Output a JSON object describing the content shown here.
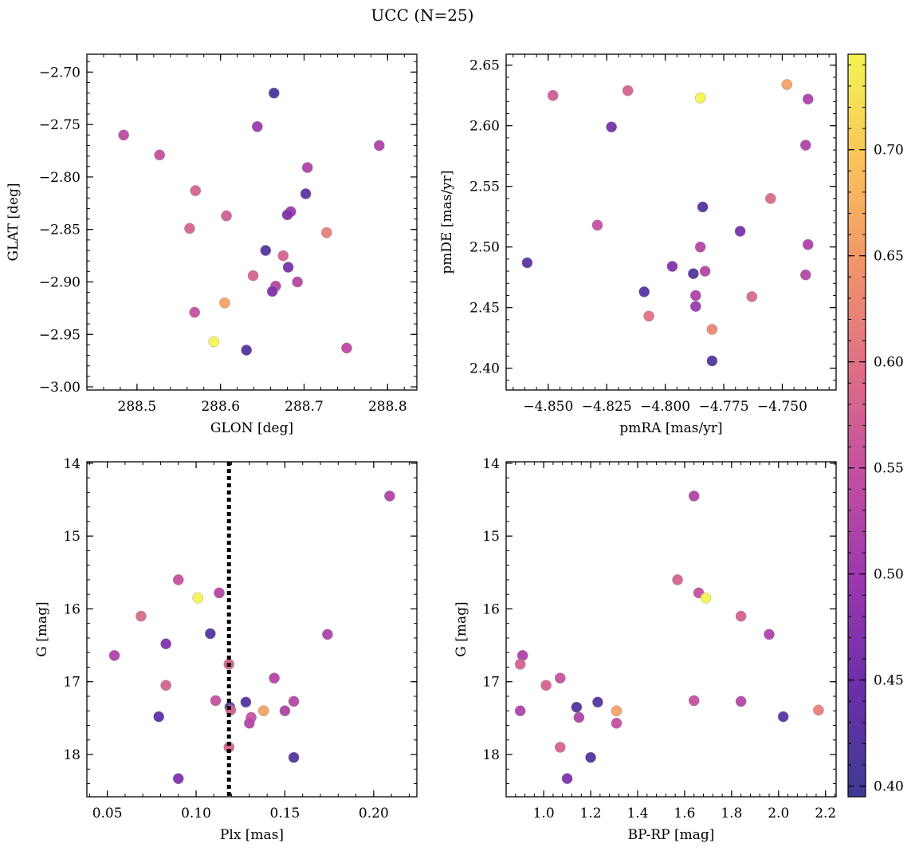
{
  "figure": {
    "suptitle": "UCC (N=25)"
  },
  "colorbar": {
    "vmin": 0.395,
    "vmax": 0.745,
    "ticks": [
      0.4,
      0.45,
      0.5,
      0.55,
      0.6,
      0.65,
      0.7
    ],
    "tick_labels": [
      "0.40",
      "0.45",
      "0.50",
      "0.55",
      "0.60",
      "0.65",
      "0.70"
    ],
    "colormap": "plasma",
    "colormap_stops": [
      "#3d3b94",
      "#6a2fa8",
      "#9a36b0",
      "#c24da3",
      "#de6d86",
      "#f2946a",
      "#fbc25a",
      "#f3f553"
    ]
  },
  "chart_data": [
    {
      "type": "scatter",
      "name": "panel-glon-glat",
      "xlabel": "GLON [deg]",
      "ylabel": "GLAT [deg]",
      "xlim": [
        288.44,
        288.835
      ],
      "ylim": [
        -3.003,
        -2.683
      ],
      "y_inverted": false,
      "xticks": [
        288.5,
        288.6,
        288.7,
        288.8
      ],
      "xtick_labels": [
        "288.5",
        "288.6",
        "288.7",
        "288.8"
      ],
      "yticks": [
        -3.0,
        -2.95,
        -2.9,
        -2.85,
        -2.8,
        -2.75,
        -2.7
      ],
      "ytick_labels": [
        "−3.00",
        "−2.95",
        "−2.90",
        "−2.85",
        "−2.80",
        "−2.75",
        "−2.70"
      ],
      "points": [
        {
          "x": 288.664,
          "y": -2.72,
          "c": 0.41
        },
        {
          "x": 288.644,
          "y": -2.752,
          "c": 0.5
        },
        {
          "x": 288.484,
          "y": -2.76,
          "c": 0.54
        },
        {
          "x": 288.79,
          "y": -2.77,
          "c": 0.52
        },
        {
          "x": 288.527,
          "y": -2.779,
          "c": 0.55
        },
        {
          "x": 288.704,
          "y": -2.791,
          "c": 0.52
        },
        {
          "x": 288.57,
          "y": -2.813,
          "c": 0.58
        },
        {
          "x": 288.702,
          "y": -2.816,
          "c": 0.43
        },
        {
          "x": 288.607,
          "y": -2.837,
          "c": 0.57
        },
        {
          "x": 288.684,
          "y": -2.833,
          "c": 0.5
        },
        {
          "x": 288.68,
          "y": -2.836,
          "c": 0.47
        },
        {
          "x": 288.563,
          "y": -2.849,
          "c": 0.58
        },
        {
          "x": 288.727,
          "y": -2.853,
          "c": 0.62
        },
        {
          "x": 288.654,
          "y": -2.87,
          "c": 0.42
        },
        {
          "x": 288.675,
          "y": -2.875,
          "c": 0.58
        },
        {
          "x": 288.681,
          "y": -2.886,
          "c": 0.46
        },
        {
          "x": 288.639,
          "y": -2.894,
          "c": 0.58
        },
        {
          "x": 288.666,
          "y": -2.904,
          "c": 0.53
        },
        {
          "x": 288.662,
          "y": -2.909,
          "c": 0.47
        },
        {
          "x": 288.692,
          "y": -2.9,
          "c": 0.53
        },
        {
          "x": 288.569,
          "y": -2.929,
          "c": 0.55
        },
        {
          "x": 288.605,
          "y": -2.92,
          "c": 0.66
        },
        {
          "x": 288.592,
          "y": -2.957,
          "c": 0.745
        },
        {
          "x": 288.631,
          "y": -2.965,
          "c": 0.42
        },
        {
          "x": 288.751,
          "y": -2.963,
          "c": 0.54
        }
      ]
    },
    {
      "type": "scatter",
      "name": "panel-pmra-pmde",
      "xlabel": "pmRA [mas/yr]",
      "ylabel": "pmDE [mas/yr]",
      "xlim": [
        -4.868,
        -4.727
      ],
      "ylim": [
        2.382,
        2.659
      ],
      "y_inverted": false,
      "xticks": [
        -4.85,
        -4.825,
        -4.8,
        -4.775,
        -4.75
      ],
      "xtick_labels": [
        "−4.850",
        "−4.825",
        "−4.800",
        "−4.775",
        "−4.750"
      ],
      "yticks": [
        2.4,
        2.45,
        2.5,
        2.55,
        2.6,
        2.65
      ],
      "ytick_labels": [
        "2.40",
        "2.45",
        "2.50",
        "2.55",
        "2.60",
        "2.65"
      ],
      "points": [
        {
          "x": -4.748,
          "y": 2.634,
          "c": 0.66
        },
        {
          "x": -4.816,
          "y": 2.629,
          "c": 0.58
        },
        {
          "x": -4.848,
          "y": 2.625,
          "c": 0.57
        },
        {
          "x": -4.785,
          "y": 2.623,
          "c": 0.745
        },
        {
          "x": -4.739,
          "y": 2.622,
          "c": 0.52
        },
        {
          "x": -4.823,
          "y": 2.599,
          "c": 0.46
        },
        {
          "x": -4.74,
          "y": 2.584,
          "c": 0.52
        },
        {
          "x": -4.755,
          "y": 2.54,
          "c": 0.59
        },
        {
          "x": -4.784,
          "y": 2.533,
          "c": 0.42
        },
        {
          "x": -4.829,
          "y": 2.518,
          "c": 0.55
        },
        {
          "x": -4.768,
          "y": 2.513,
          "c": 0.46
        },
        {
          "x": -4.739,
          "y": 2.502,
          "c": 0.52
        },
        {
          "x": -4.785,
          "y": 2.5,
          "c": 0.53
        },
        {
          "x": -4.859,
          "y": 2.487,
          "c": 0.43
        },
        {
          "x": -4.797,
          "y": 2.484,
          "c": 0.47
        },
        {
          "x": -4.783,
          "y": 2.48,
          "c": 0.53
        },
        {
          "x": -4.788,
          "y": 2.478,
          "c": 0.42
        },
        {
          "x": -4.74,
          "y": 2.477,
          "c": 0.53
        },
        {
          "x": -4.809,
          "y": 2.463,
          "c": 0.42
        },
        {
          "x": -4.787,
          "y": 2.46,
          "c": 0.52
        },
        {
          "x": -4.763,
          "y": 2.459,
          "c": 0.59
        },
        {
          "x": -4.787,
          "y": 2.451,
          "c": 0.5
        },
        {
          "x": -4.807,
          "y": 2.443,
          "c": 0.6
        },
        {
          "x": -4.78,
          "y": 2.432,
          "c": 0.63
        },
        {
          "x": -4.78,
          "y": 2.406,
          "c": 0.42
        }
      ]
    },
    {
      "type": "scatter",
      "name": "panel-plx-g",
      "xlabel": "Plx [mas]",
      "ylabel": "G [mag]",
      "xlim": [
        0.0385,
        0.2243
      ],
      "ylim": [
        18.58,
        13.98
      ],
      "y_inverted": true,
      "xticks": [
        0.05,
        0.1,
        0.15,
        0.2
      ],
      "xtick_labels": [
        "0.05",
        "0.10",
        "0.15",
        "0.20"
      ],
      "yticks": [
        14,
        15,
        16,
        17,
        18
      ],
      "ytick_labels": [
        "14",
        "15",
        "16",
        "17",
        "18"
      ],
      "vline": {
        "x": 0.1185,
        "style": "dotted"
      },
      "points": [
        {
          "x": 0.209,
          "y": 14.45,
          "c": 0.52
        },
        {
          "x": 0.09,
          "y": 15.6,
          "c": 0.55
        },
        {
          "x": 0.113,
          "y": 15.78,
          "c": 0.53
        },
        {
          "x": 0.101,
          "y": 15.85,
          "c": 0.745
        },
        {
          "x": 0.069,
          "y": 16.1,
          "c": 0.59
        },
        {
          "x": 0.108,
          "y": 16.34,
          "c": 0.42
        },
        {
          "x": 0.174,
          "y": 16.35,
          "c": 0.52
        },
        {
          "x": 0.083,
          "y": 16.48,
          "c": 0.47
        },
        {
          "x": 0.054,
          "y": 16.64,
          "c": 0.52
        },
        {
          "x": 0.1185,
          "y": 16.76,
          "c": 0.58
        },
        {
          "x": 0.144,
          "y": 16.95,
          "c": 0.53
        },
        {
          "x": 0.083,
          "y": 17.05,
          "c": 0.58
        },
        {
          "x": 0.111,
          "y": 17.26,
          "c": 0.55
        },
        {
          "x": 0.155,
          "y": 17.27,
          "c": 0.53
        },
        {
          "x": 0.128,
          "y": 17.28,
          "c": 0.42
        },
        {
          "x": 0.119,
          "y": 17.35,
          "c": 0.42
        },
        {
          "x": 0.1195,
          "y": 17.39,
          "c": 0.58
        },
        {
          "x": 0.138,
          "y": 17.4,
          "c": 0.66
        },
        {
          "x": 0.15,
          "y": 17.4,
          "c": 0.52
        },
        {
          "x": 0.079,
          "y": 17.48,
          "c": 0.43
        },
        {
          "x": 0.131,
          "y": 17.49,
          "c": 0.55
        },
        {
          "x": 0.13,
          "y": 17.57,
          "c": 0.53
        },
        {
          "x": 0.1185,
          "y": 17.9,
          "c": 0.58
        },
        {
          "x": 0.155,
          "y": 18.04,
          "c": 0.42
        },
        {
          "x": 0.09,
          "y": 18.33,
          "c": 0.47
        }
      ]
    },
    {
      "type": "scatter",
      "name": "panel-bprp-g",
      "xlabel": "BP-RP [mag]",
      "ylabel": "G [mag]",
      "xlim": [
        0.84,
        2.245
      ],
      "ylim": [
        18.58,
        13.98
      ],
      "y_inverted": true,
      "xticks": [
        1.0,
        1.2,
        1.4,
        1.6,
        1.8,
        2.0,
        2.2
      ],
      "xtick_labels": [
        "1.0",
        "1.2",
        "1.4",
        "1.6",
        "1.8",
        "2.0",
        "2.2"
      ],
      "yticks": [
        14,
        15,
        16,
        17,
        18
      ],
      "ytick_labels": [
        "14",
        "15",
        "16",
        "17",
        "18"
      ],
      "points": [
        {
          "x": 1.64,
          "y": 14.45,
          "c": 0.52
        },
        {
          "x": 1.57,
          "y": 15.6,
          "c": 0.58
        },
        {
          "x": 1.66,
          "y": 15.78,
          "c": 0.55
        },
        {
          "x": 1.69,
          "y": 15.85,
          "c": 0.745
        },
        {
          "x": 1.84,
          "y": 16.1,
          "c": 0.58
        },
        {
          "x": 1.96,
          "y": 16.35,
          "c": 0.52
        },
        {
          "x": 0.91,
          "y": 16.64,
          "c": 0.52
        },
        {
          "x": 0.9,
          "y": 16.76,
          "c": 0.58
        },
        {
          "x": 1.07,
          "y": 16.95,
          "c": 0.55
        },
        {
          "x": 1.01,
          "y": 17.05,
          "c": 0.58
        },
        {
          "x": 1.64,
          "y": 17.26,
          "c": 0.55
        },
        {
          "x": 1.84,
          "y": 17.27,
          "c": 0.53
        },
        {
          "x": 1.23,
          "y": 17.28,
          "c": 0.42
        },
        {
          "x": 1.14,
          "y": 17.35,
          "c": 0.42
        },
        {
          "x": 2.17,
          "y": 17.39,
          "c": 0.62
        },
        {
          "x": 1.31,
          "y": 17.4,
          "c": 0.66
        },
        {
          "x": 0.9,
          "y": 17.4,
          "c": 0.52
        },
        {
          "x": 2.02,
          "y": 17.48,
          "c": 0.43
        },
        {
          "x": 1.15,
          "y": 17.49,
          "c": 0.52
        },
        {
          "x": 1.31,
          "y": 17.57,
          "c": 0.55
        },
        {
          "x": 1.07,
          "y": 17.9,
          "c": 0.58
        },
        {
          "x": 1.2,
          "y": 18.04,
          "c": 0.42
        },
        {
          "x": 1.1,
          "y": 18.33,
          "c": 0.47
        }
      ]
    }
  ]
}
